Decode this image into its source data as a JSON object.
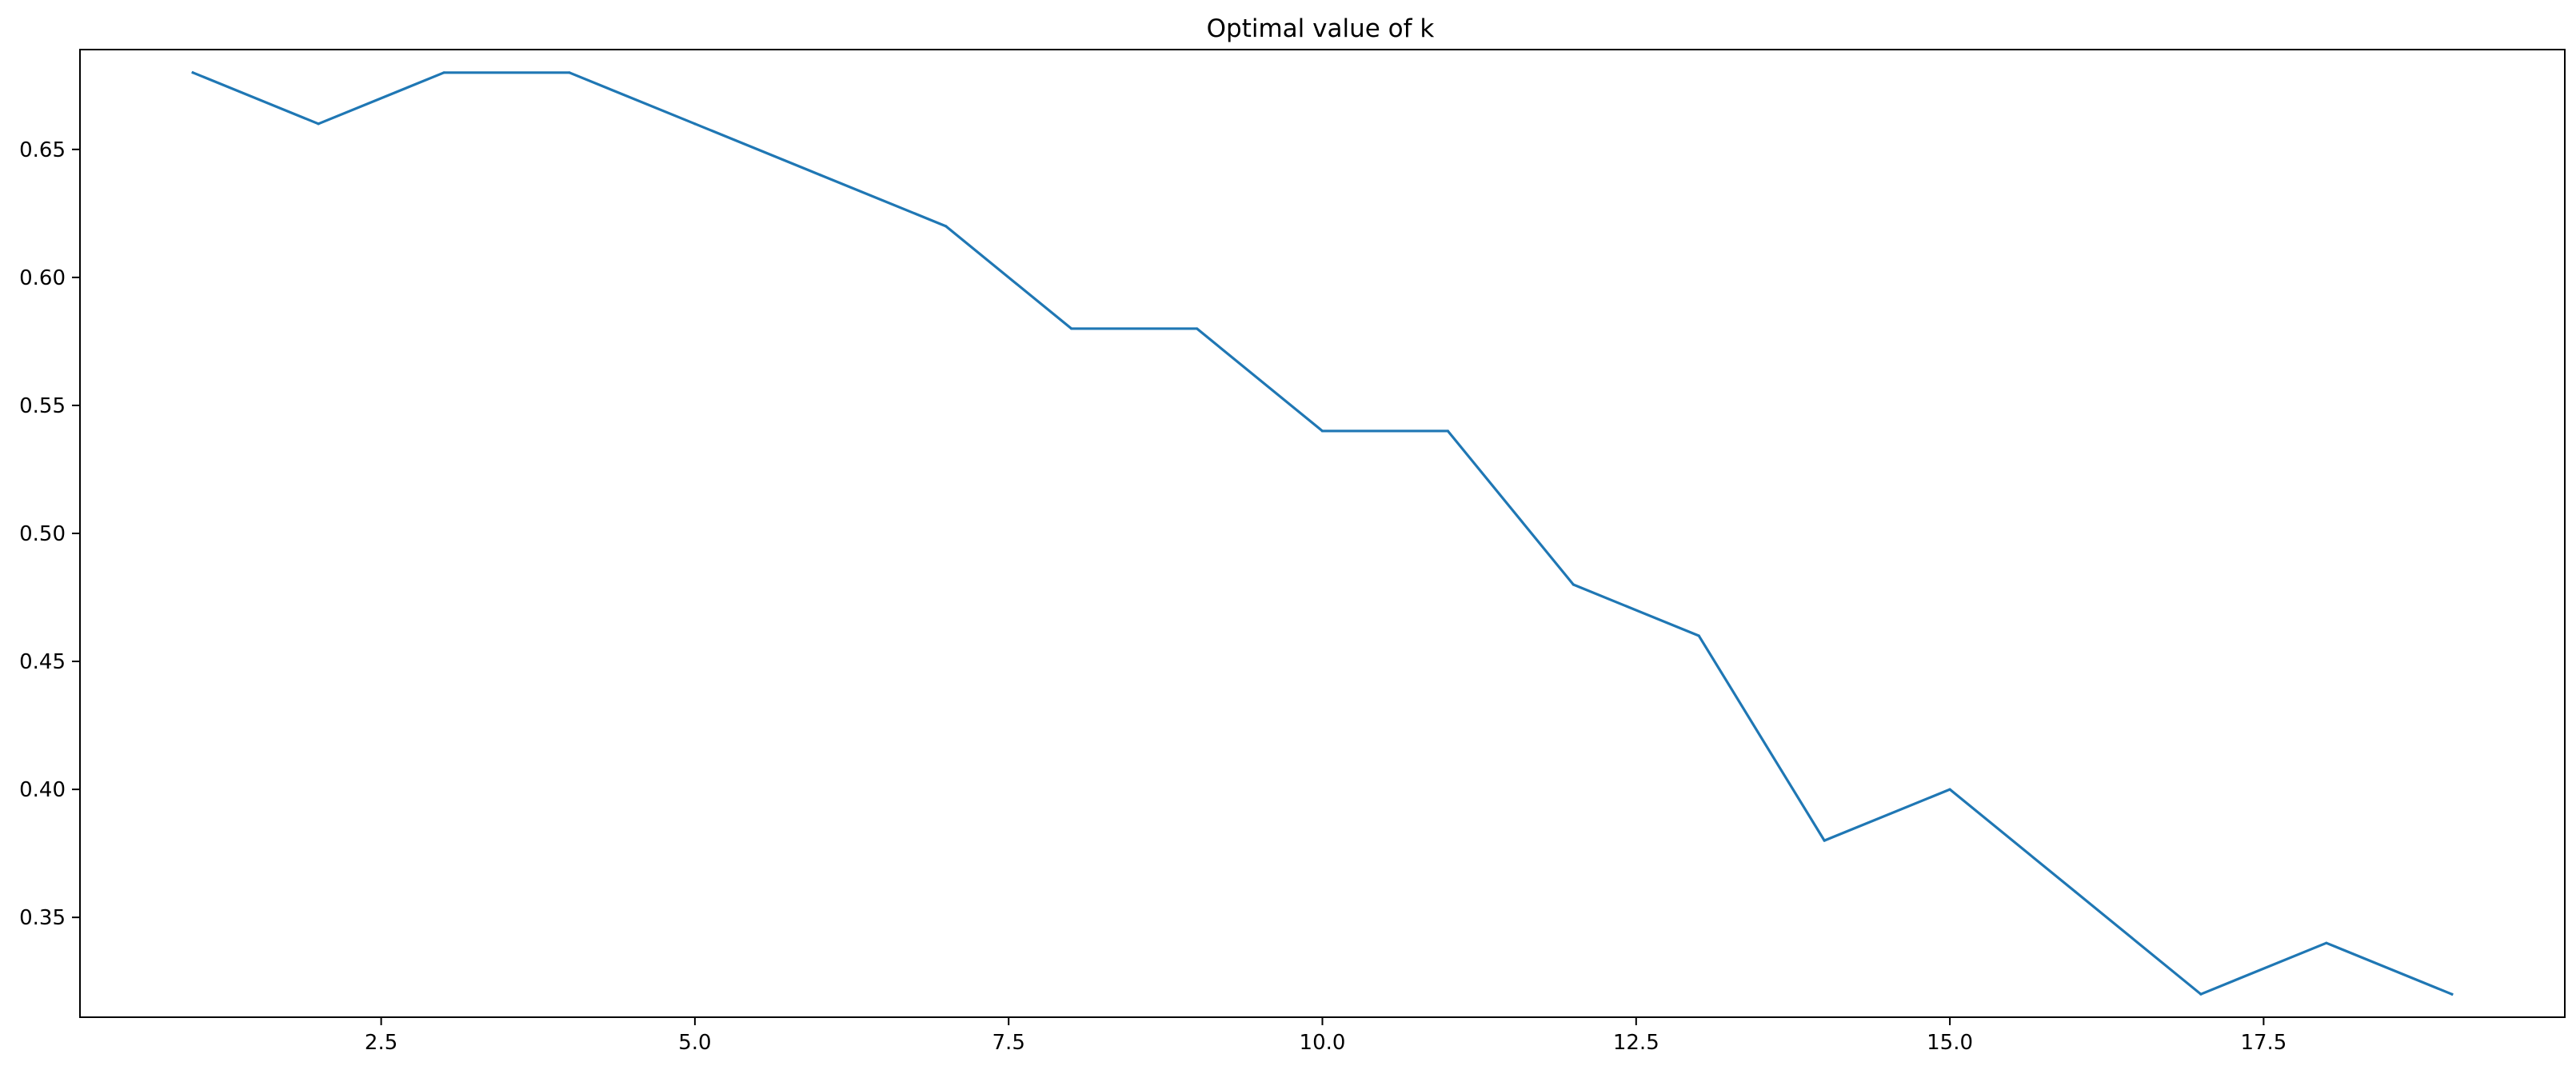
{
  "chart_data": {
    "type": "line",
    "title": "Optimal value of k",
    "xlabel": "",
    "ylabel": "",
    "xlim": [
      0.1,
      19.9
    ],
    "ylim": [
      0.311,
      0.689
    ],
    "grid": false,
    "legend": "none",
    "x_ticks": [
      2.5,
      5.0,
      7.5,
      10.0,
      12.5,
      15.0,
      17.5
    ],
    "x_tick_labels": [
      "2.5",
      "5.0",
      "7.5",
      "10.0",
      "12.5",
      "15.0",
      "17.5"
    ],
    "y_ticks": [
      0.35,
      0.4,
      0.45,
      0.5,
      0.55,
      0.6,
      0.65
    ],
    "y_tick_labels": [
      "0.35",
      "0.40",
      "0.45",
      "0.50",
      "0.55",
      "0.60",
      "0.65"
    ],
    "series": [
      {
        "color": "#1f77b4",
        "x": [
          1,
          2,
          3,
          4,
          5,
          6,
          7,
          8,
          9,
          10,
          11,
          12,
          13,
          14,
          15,
          16,
          17,
          18,
          19
        ],
        "y": [
          0.68,
          0.66,
          0.68,
          0.68,
          0.66,
          0.64,
          0.62,
          0.58,
          0.58,
          0.54,
          0.54,
          0.48,
          0.46,
          0.38,
          0.4,
          0.36,
          0.32,
          0.34,
          0.32
        ]
      }
    ]
  }
}
